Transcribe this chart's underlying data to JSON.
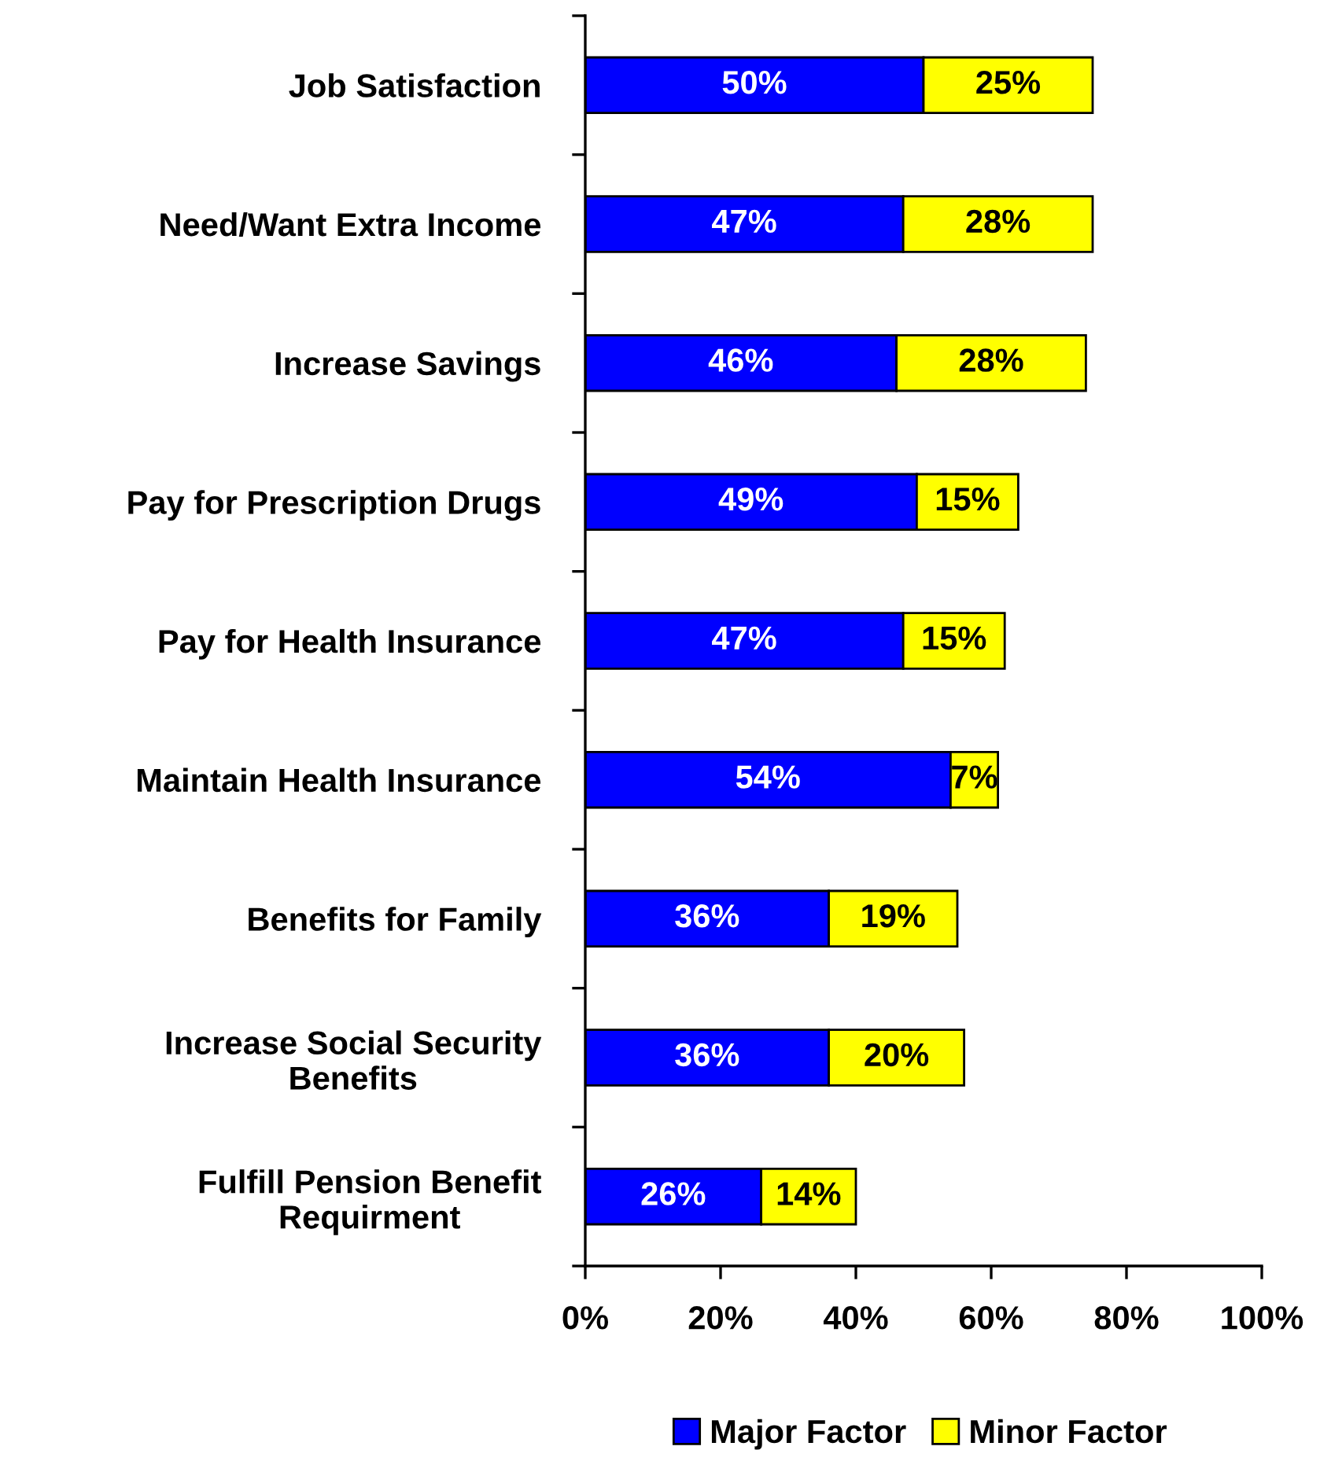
{
  "chart_data": {
    "type": "bar",
    "orientation": "horizontal",
    "stacked": true,
    "categories": [
      "Job Satisfaction",
      "Need/Want Extra Income",
      "Increase Savings",
      "Pay for Prescription Drugs",
      "Pay for Health Insurance",
      "Maintain Health Insurance",
      "Benefits for Family",
      "Increase Social Security\nBenefits",
      "Fulfill Pension Benefit\nRequirment"
    ],
    "series": [
      {
        "name": "Major Factor",
        "color": "#0000ff",
        "values": [
          50,
          47,
          46,
          49,
          47,
          54,
          36,
          36,
          26
        ],
        "value_labels": [
          "50%",
          "47%",
          "46%",
          "49%",
          "47%",
          "54%",
          "36%",
          "36%",
          "26%"
        ]
      },
      {
        "name": "Minor Factor",
        "color": "#ffff00",
        "values": [
          25,
          28,
          28,
          15,
          15,
          7,
          19,
          20,
          14
        ],
        "value_labels": [
          "25%",
          "28%",
          "28%",
          "15%",
          "15%",
          "7%",
          "19%",
          "20%",
          "14%"
        ]
      }
    ],
    "xlim": [
      0,
      100
    ],
    "xticks": [
      {
        "value": 0,
        "label": "0%"
      },
      {
        "value": 20,
        "label": "20%"
      },
      {
        "value": 40,
        "label": "40%"
      },
      {
        "value": 60,
        "label": "60%"
      },
      {
        "value": 80,
        "label": "80%"
      },
      {
        "value": 100,
        "label": "100%"
      }
    ],
    "grid": false,
    "legend": "bottom"
  }
}
